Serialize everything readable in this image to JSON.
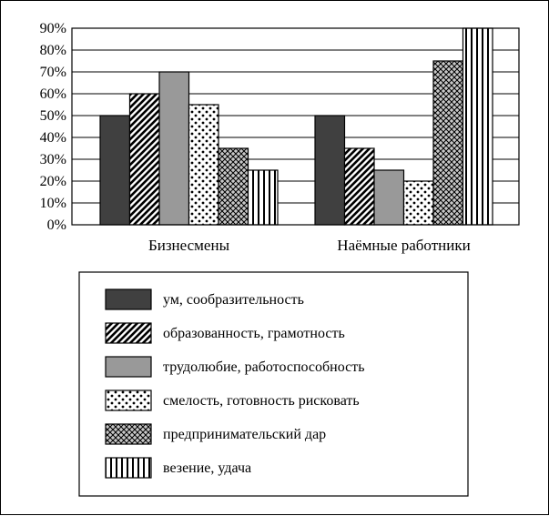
{
  "chart_data": {
    "type": "bar",
    "title": "",
    "xlabel": "",
    "ylabel": "",
    "ylim": [
      0,
      90
    ],
    "y_tick_labels": [
      "0%",
      "10%",
      "20%",
      "30%",
      "40%",
      "50%",
      "60%",
      "70%",
      "80%",
      "90%"
    ],
    "grid": true,
    "legend_position": "bottom",
    "categories": [
      "Бизнесмены",
      "Наёмные работники"
    ],
    "series": [
      {
        "name": "ум, сообразительность",
        "values": [
          50,
          50
        ],
        "pattern": "solid-dark"
      },
      {
        "name": "образованность, грамотность",
        "values": [
          60,
          35
        ],
        "pattern": "diagonal-hatch"
      },
      {
        "name": "трудолюбие, работоспособность",
        "values": [
          70,
          25
        ],
        "pattern": "solid-gray"
      },
      {
        "name": "смелость, готовность рисковать",
        "values": [
          55,
          20
        ],
        "pattern": "dots"
      },
      {
        "name": "предпринимательский дар",
        "values": [
          35,
          75
        ],
        "pattern": "crosshatch"
      },
      {
        "name": "везение, удача",
        "values": [
          25,
          90
        ],
        "pattern": "vertical-lines"
      }
    ],
    "colors": {
      "dark": "#404040",
      "gray": "#999999",
      "line": "#000000",
      "background": "#ffffff"
    }
  }
}
